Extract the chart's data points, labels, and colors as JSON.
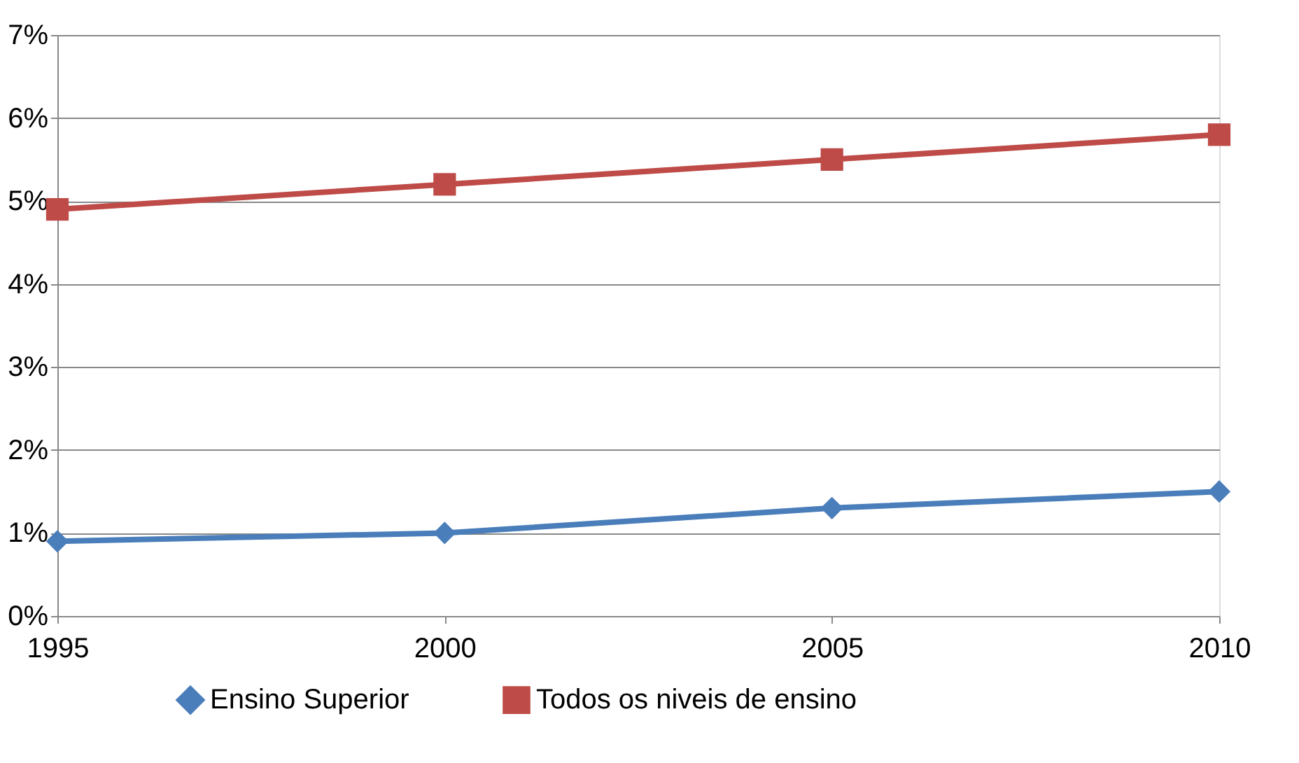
{
  "chart_data": {
    "type": "line",
    "x": [
      1995,
      2000,
      2005,
      2010
    ],
    "xlim": [
      1995,
      2010
    ],
    "xticks": [
      1995,
      2000,
      2005,
      2010
    ],
    "ylim": [
      0,
      7
    ],
    "yticks": [
      {
        "value": 0,
        "label": "0%"
      },
      {
        "value": 1,
        "label": "1%"
      },
      {
        "value": 2,
        "label": "2%"
      },
      {
        "value": 3,
        "label": "3%"
      },
      {
        "value": 4,
        "label": "4%"
      },
      {
        "value": 5,
        "label": "5%"
      },
      {
        "value": 6,
        "label": "6%"
      },
      {
        "value": 7,
        "label": "7%"
      }
    ],
    "grid": "y",
    "legend": "bottom",
    "line_style": "solid",
    "series": [
      {
        "name": "Ensino Superior",
        "color": "#4a7ebb",
        "marker": "diamond",
        "values": [
          0.9,
          1.0,
          1.3,
          1.5
        ]
      },
      {
        "name": "Todos os niveis de ensino",
        "color": "#be4b48",
        "marker": "square",
        "values": [
          4.9,
          5.2,
          5.5,
          5.8
        ]
      }
    ]
  }
}
